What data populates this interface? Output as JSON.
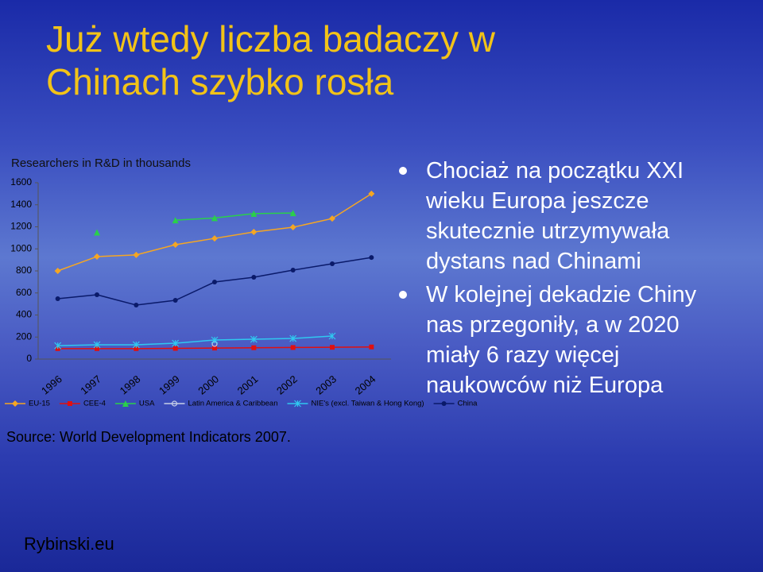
{
  "title": "Już wtedy liczba badaczy w Chinach szybko rosła",
  "chart_data": {
    "type": "line",
    "title": "Researchers in R&D in thousands",
    "categories": [
      "1996",
      "1997",
      "1998",
      "1999",
      "2000",
      "2001",
      "2002",
      "2003",
      "2004"
    ],
    "series": [
      {
        "name": "EU-15",
        "color": "#f5a623",
        "marker": "diamond",
        "values": [
          800,
          930,
          945,
          1038,
          1095,
          1153,
          1196,
          1275,
          1500
        ]
      },
      {
        "name": "CEE-4",
        "color": "#e01010",
        "marker": "square",
        "values": [
          95,
          95,
          95,
          97,
          100,
          103,
          105,
          107,
          110
        ]
      },
      {
        "name": "USA",
        "color": "#2ad04a",
        "marker": "triangle",
        "values": [
          null,
          1150,
          null,
          1260,
          1280,
          1320,
          1325,
          null,
          null
        ]
      },
      {
        "name": "Latin America & Caribbean",
        "color": "#c8d0e8",
        "marker": "circle-open",
        "values": [
          null,
          null,
          null,
          null,
          137,
          null,
          null,
          null,
          null
        ]
      },
      {
        "name": "NIE's (excl. Taiwan & Hong Kong)",
        "color": "#30c8f0",
        "marker": "asterisk",
        "values": [
          122,
          130,
          130,
          144,
          173,
          180,
          187,
          209,
          null
        ]
      },
      {
        "name": "China",
        "color": "#0a1a6a",
        "marker": "circle",
        "values": [
          548,
          584,
          490,
          533,
          699,
          742,
          807,
          865,
          922
        ]
      }
    ],
    "ylim": [
      0,
      1600
    ],
    "yticks": [
      0,
      200,
      400,
      600,
      800,
      1000,
      1200,
      1400,
      1600
    ],
    "grid": false,
    "legend": "bottom"
  },
  "bullets": [
    "Chociaż na początku XXI wieku Europa jeszcze skutecznie utrzymywała dystans nad Chinami",
    "W kolejnej dekadzie Chiny nas przegoniły, a w 2020 miały 6 razy więcej naukowców niż Europa"
  ],
  "source": "Source: World Development Indicators 2007.",
  "footer": "Rybinski.eu"
}
